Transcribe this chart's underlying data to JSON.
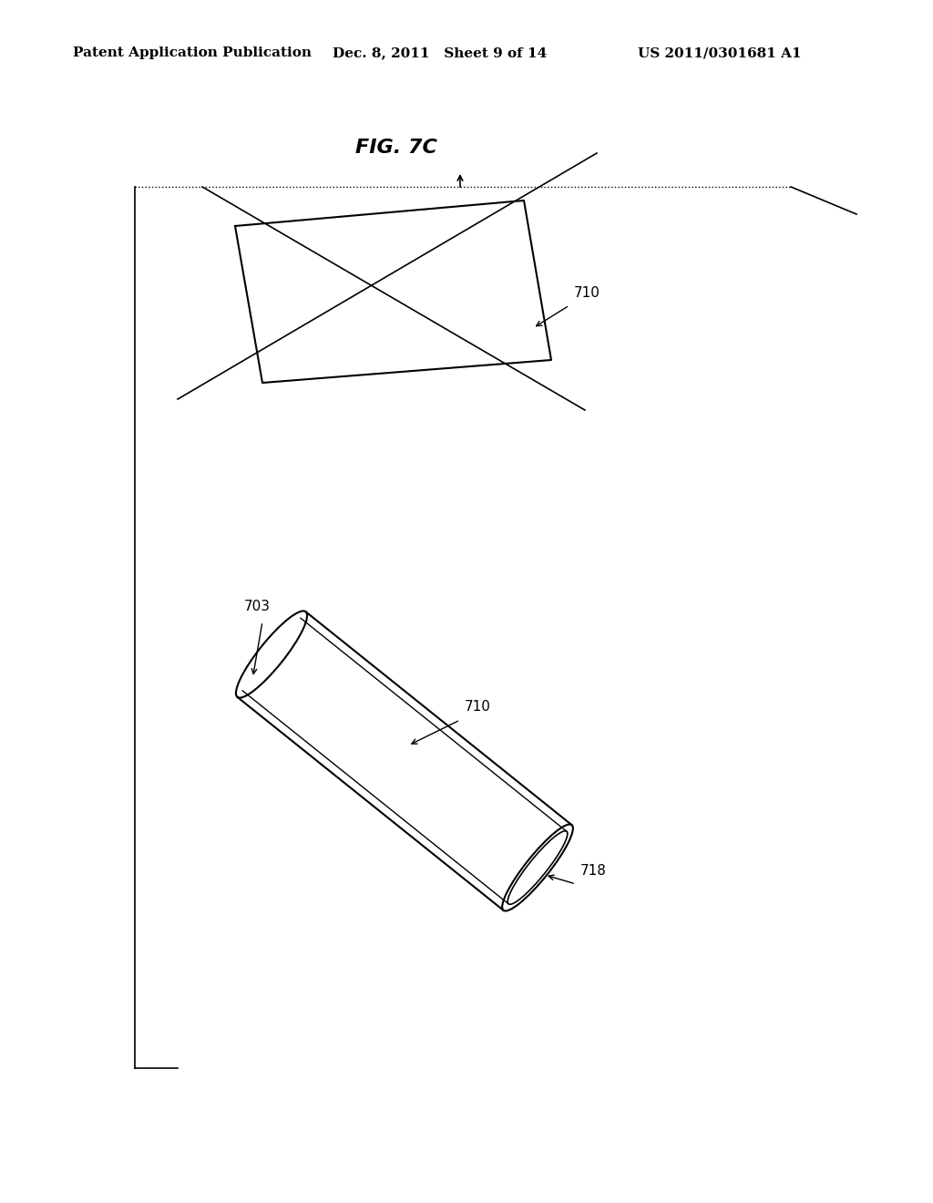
{
  "background_color": "#ffffff",
  "header_left": "Patent Application Publication",
  "header_mid": "Dec. 8, 2011   Sheet 9 of 14",
  "header_right": "US 2011/0301681 A1",
  "fig_label": "FIG. 7C",
  "label_710_sheet": "710",
  "label_710_tube": "710",
  "label_703": "703",
  "label_718": "718",
  "line_color": "#000000",
  "text_color": "#000000",
  "header_fontsize": 11,
  "fig_label_fontsize": 16,
  "annotation_fontsize": 11
}
